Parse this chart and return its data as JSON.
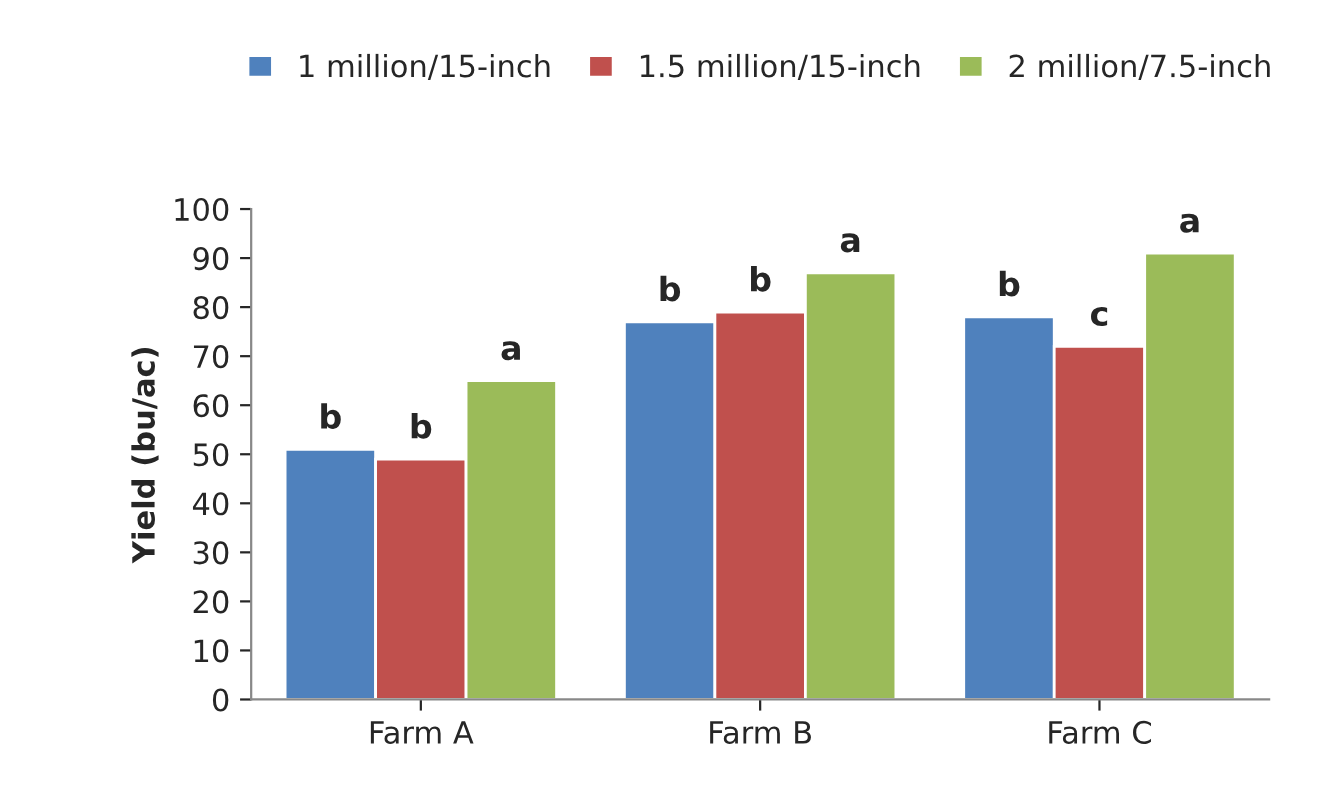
{
  "chart_data": {
    "type": "bar",
    "ylabel": "Yield (bu/ac)",
    "categories": [
      "Farm A",
      "Farm B",
      "Farm C"
    ],
    "series": [
      {
        "name": "1 million/15-inch",
        "color": "#4f81bd",
        "values": [
          51,
          77,
          78
        ],
        "value_labels": [
          "b",
          "b",
          "b"
        ]
      },
      {
        "name": "1.5 million/15-inch",
        "color": "#c0504d",
        "values": [
          49,
          79,
          72
        ],
        "value_labels": [
          "b",
          "b",
          "c"
        ]
      },
      {
        "name": "2 million/7.5-inch",
        "color": "#9bbb59",
        "values": [
          65,
          87,
          91
        ],
        "value_labels": [
          "a",
          "a",
          "a"
        ]
      }
    ],
    "ylim": [
      0,
      100
    ],
    "yticks": [
      0,
      10,
      20,
      30,
      40,
      50,
      60,
      70,
      80,
      90,
      100
    ],
    "grid": false,
    "legend": "top"
  }
}
